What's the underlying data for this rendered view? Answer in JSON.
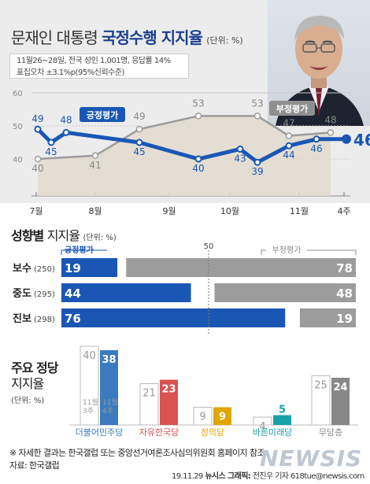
{
  "header": {
    "title_plain": "문재인 대통령",
    "title_bold": "국정수행 지지율",
    "title_unit": "(단위: %)",
    "survey_line1": "11월26~28일, 전국 성인 1,001명, 응답률 14%",
    "survey_line2": "표집오차 ±3.1%p(95%신뢰수준)"
  },
  "trend": {
    "y_ticks": [
      "40",
      "50",
      "60"
    ],
    "x_labels": [
      "7월",
      "8월",
      "9월",
      "10월",
      "11월",
      "4주"
    ],
    "positive_label": "긍정평가",
    "negative_label": "부정평가"
  },
  "ideology": {
    "title_bold": "성향별",
    "title_plain": "지지율",
    "unit": "(단위: %)",
    "midline": "50",
    "positive_label": "긍정평가",
    "negative_label": "부정평가"
  },
  "party": {
    "title_bold": "주요 정당",
    "title_plain": "지지율",
    "unit": "(단위: %)",
    "week_prev": "11월 3주",
    "week_cur": "11월 4주"
  },
  "footer": {
    "note": "※ 자세한 결과는 한국갤럽 또는 중앙선거여론조사심의위원회 홈페이지 참조",
    "source": "자료: 한국갤럽",
    "credit_date": "19.11.29",
    "credit_org": "뉴시스 그래픽:",
    "credit_author": "전진우 기자 618tue@newsis.com",
    "logo": "NEWSIS"
  },
  "colors": {
    "positive": "#1a57b5",
    "negative": "#9c9c9c",
    "header_bg": "#ececec"
  },
  "chart_data": [
    {
      "type": "line",
      "title": "문재인 대통령 국정수행 지지율",
      "ylim": [
        40,
        60
      ],
      "series": [
        {
          "name": "긍정평가",
          "values": [
            49,
            45,
            48,
            45,
            40,
            43,
            39,
            44,
            46,
            46
          ]
        },
        {
          "name": "부정평가",
          "values": [
            40,
            41,
            49,
            53,
            53,
            47,
            48
          ]
        }
      ]
    },
    {
      "type": "bar",
      "title": "성향별 지지율",
      "categories": [
        "보수",
        "중도",
        "진보"
      ],
      "sample_sizes": [
        "(250)",
        "(295)",
        "(298)"
      ],
      "series": [
        {
          "name": "긍정평가",
          "values": [
            19,
            44,
            76
          ]
        },
        {
          "name": "부정평가",
          "values": [
            78,
            48,
            19
          ]
        }
      ]
    },
    {
      "type": "bar",
      "title": "주요 정당 지지율",
      "categories": [
        "더불어민주당",
        "자유한국당",
        "정의당",
        "바른미래당",
        "무당층"
      ],
      "colors": [
        "#3a7bc0",
        "#d9534f",
        "#e2a400",
        "#1aa1a7",
        "#888888"
      ],
      "series": [
        {
          "name": "11월 3주",
          "values": [
            40,
            21,
            9,
            4,
            25
          ]
        },
        {
          "name": "11월 4주",
          "values": [
            38,
            23,
            9,
            5,
            24
          ]
        }
      ]
    }
  ]
}
